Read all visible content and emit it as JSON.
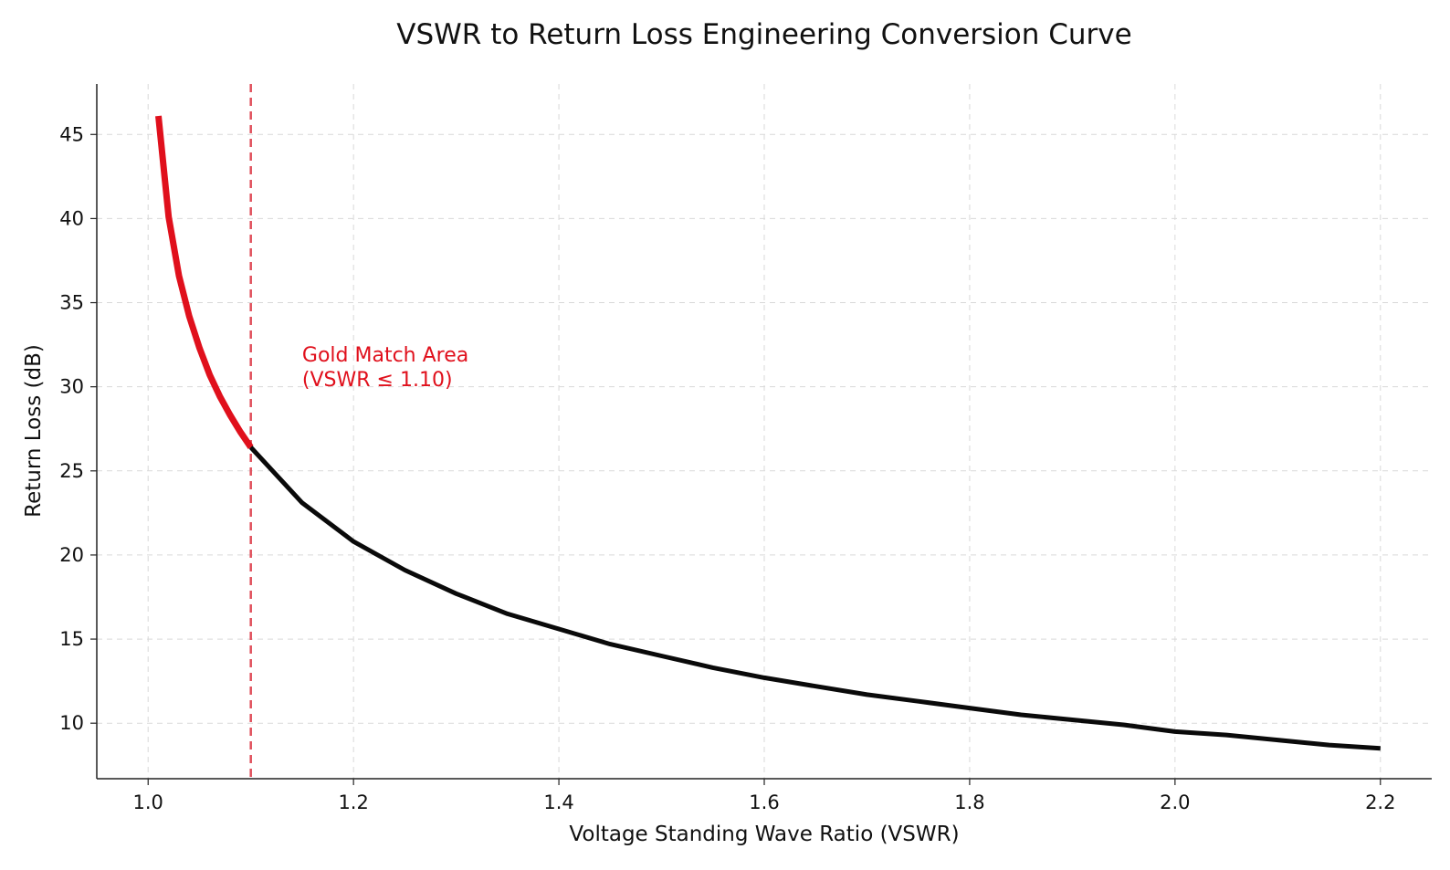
{
  "chart_data": {
    "type": "line",
    "title": "VSWR to Return Loss Engineering Conversion Curve",
    "xlabel": "Voltage Standing Wave Ratio (VSWR)",
    "ylabel": "Return Loss (dB)",
    "xlim": [
      0.95,
      2.25
    ],
    "ylim": [
      6.7,
      48
    ],
    "xticks": [
      1.0,
      1.2,
      1.4,
      1.6,
      1.8,
      2.0,
      2.2
    ],
    "xtick_labels": [
      "1.0",
      "1.2",
      "1.4",
      "1.6",
      "1.8",
      "2.0",
      "2.2"
    ],
    "yticks": [
      10,
      15,
      20,
      25,
      30,
      35,
      40,
      45
    ],
    "ytick_labels": [
      "10",
      "15",
      "20",
      "25",
      "30",
      "35",
      "40",
      "45"
    ],
    "grid": true,
    "series": [
      {
        "color": "#e0101c",
        "x": [
          1.01,
          1.02,
          1.03,
          1.04,
          1.05,
          1.06,
          1.07,
          1.08,
          1.09,
          1.1
        ],
        "y": [
          46.1,
          40.1,
          36.6,
          34.2,
          32.3,
          30.7,
          29.4,
          28.3,
          27.3,
          26.4
        ]
      },
      {
        "color": "#0a0a0a",
        "x": [
          1.1,
          1.15,
          1.2,
          1.25,
          1.3,
          1.35,
          1.4,
          1.45,
          1.5,
          1.55,
          1.6,
          1.65,
          1.7,
          1.75,
          1.8,
          1.85,
          1.9,
          1.95,
          2.0,
          2.05,
          2.1,
          2.15,
          2.2
        ],
        "y": [
          26.4,
          23.1,
          20.8,
          19.1,
          17.7,
          16.5,
          15.6,
          14.7,
          14.0,
          13.3,
          12.7,
          12.2,
          11.7,
          11.3,
          10.9,
          10.5,
          10.2,
          9.9,
          9.5,
          9.3,
          9.0,
          8.7,
          8.5
        ]
      }
    ],
    "threshold": {
      "x": 1.1,
      "color": "#e0505c"
    },
    "annotation": {
      "line1": "Gold Match Area",
      "line2": "(VSWR ≤ 1.10)",
      "x": 1.15,
      "y": 31.5,
      "color": "#e0101c"
    }
  }
}
